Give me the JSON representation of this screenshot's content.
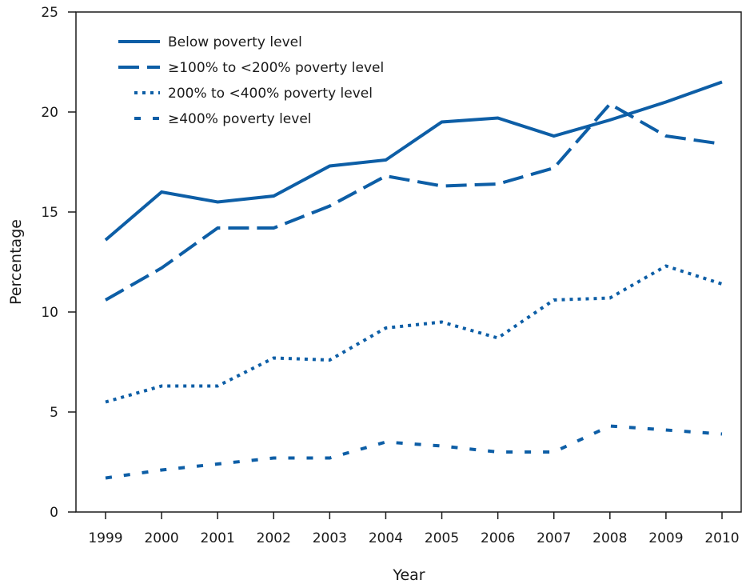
{
  "chart_data": {
    "type": "line",
    "title": "",
    "xlabel": "Year",
    "ylabel": "Percentage",
    "categories": [
      "1999",
      "2000",
      "2001",
      "2002",
      "2003",
      "2004",
      "2005",
      "2006",
      "2007",
      "2008",
      "2009",
      "2010"
    ],
    "yticks": [
      "0",
      "5",
      "10",
      "15",
      "20",
      "25"
    ],
    "ylim": [
      0,
      25
    ],
    "grid": false,
    "legend_position": "top-left",
    "series_color": "#0d5ea6",
    "series": [
      {
        "name": "Below poverty level",
        "style": "solid",
        "values": [
          13.6,
          16.0,
          15.5,
          15.8,
          17.3,
          17.6,
          19.5,
          19.7,
          18.8,
          19.6,
          20.5,
          21.5
        ]
      },
      {
        "name": "≥100% to <200% poverty level",
        "style": "dashed",
        "values": [
          10.6,
          12.2,
          14.2,
          14.2,
          15.3,
          16.8,
          16.3,
          16.4,
          17.2,
          20.4,
          18.8,
          18.4
        ]
      },
      {
        "name": "200% to <400% poverty level",
        "style": "dotted",
        "values": [
          5.5,
          6.3,
          6.3,
          7.7,
          7.6,
          9.2,
          9.5,
          8.7,
          10.6,
          10.7,
          12.3,
          11.4
        ]
      },
      {
        "name": "≥400% poverty level",
        "style": "short-dashed",
        "values": [
          1.7,
          2.1,
          2.4,
          2.7,
          2.7,
          3.5,
          3.3,
          3.0,
          3.0,
          4.3,
          4.1,
          3.9
        ]
      }
    ]
  }
}
